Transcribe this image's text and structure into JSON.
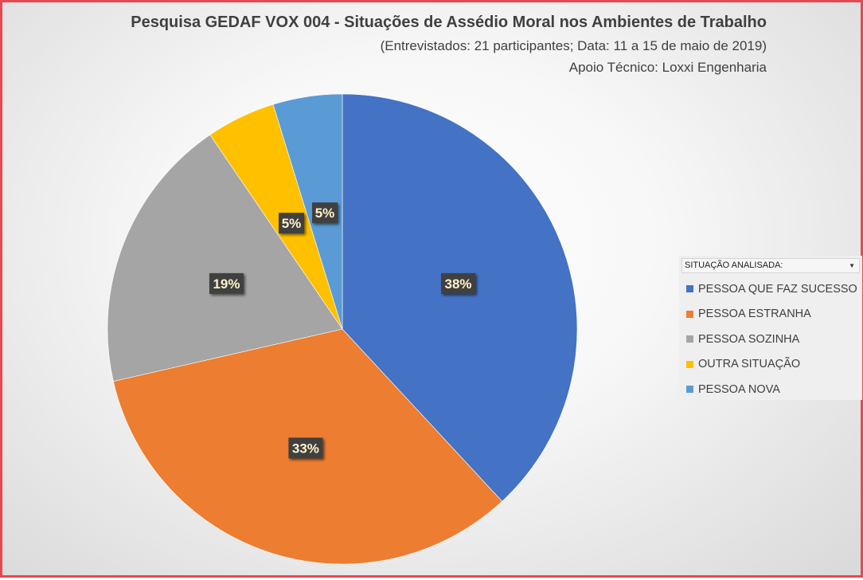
{
  "chart": {
    "title": "Pesquisa GEDAF VOX 004 - Situações de Assédio Moral nos Ambientes de Trabalho",
    "subtitle": "(Entrevistados: 21 participantes; Data: 11 a 15 de maio de 2019)",
    "support_line": "Apoio Técnico: Loxxi Engenharia"
  },
  "legend": {
    "header": "SITUAÇÃO ANALISADA:",
    "dropdown_icon": "triangle-down-icon",
    "placement": "right"
  },
  "chart_data": {
    "type": "pie",
    "categories": [
      "PESSOA QUE FAZ SUCESSO",
      "PESSOA ESTRANHA",
      "PESSOA SOZINHA",
      "OUTRA SITUAÇÃO",
      "PESSOA NOVA"
    ],
    "values": [
      8,
      7,
      4,
      1,
      1
    ],
    "data_labels": [
      "38%",
      "33%",
      "19%",
      "5%",
      "5%"
    ],
    "colors": [
      "#4472c4",
      "#ed7d31",
      "#a5a5a5",
      "#ffc000",
      "#5b9bd5"
    ],
    "start_angle_deg": 0,
    "direction": "clockwise"
  }
}
